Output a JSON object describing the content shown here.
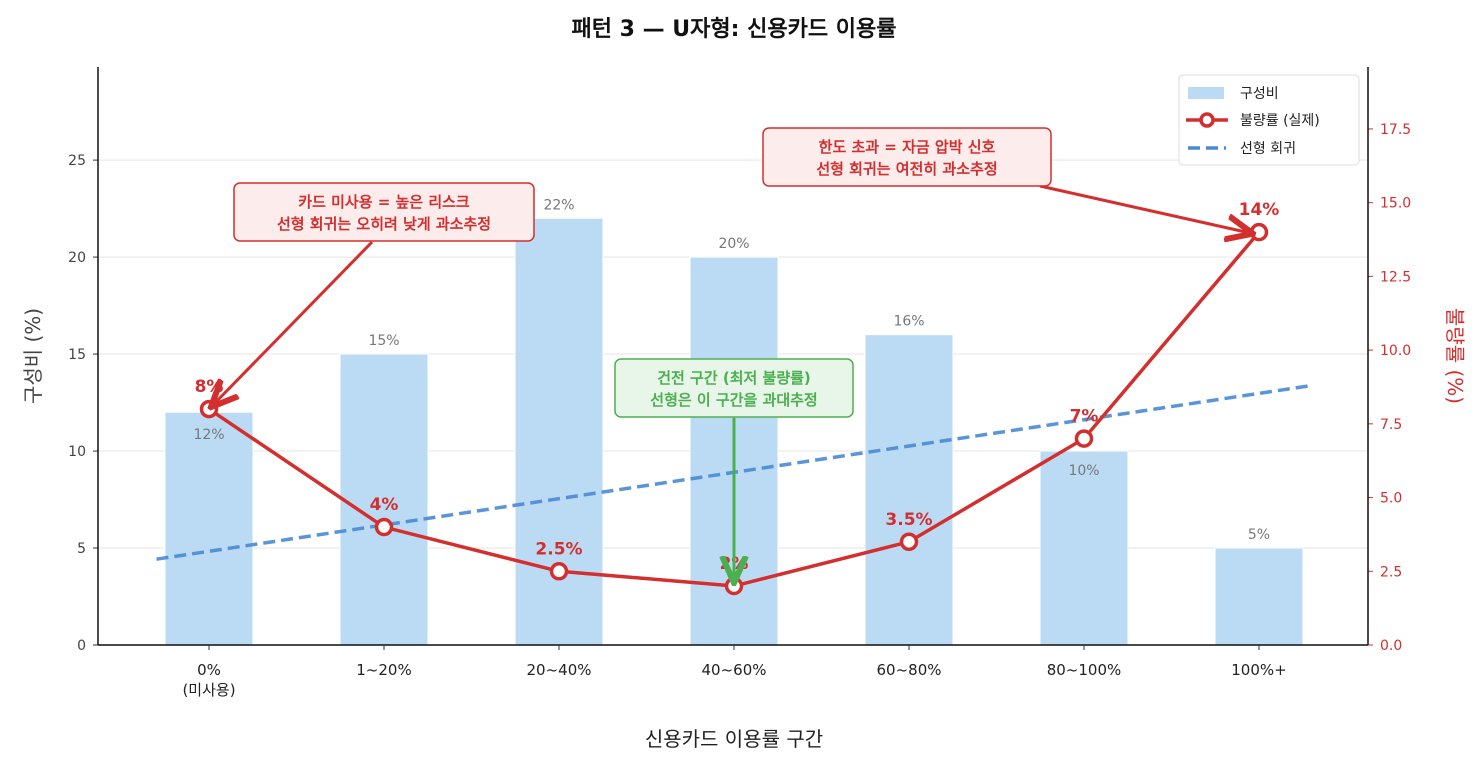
{
  "chart_data": {
    "type": "bar+line",
    "title": "패턴 3 — U자형: 신용카드 이용률",
    "xlabel": "신용카드 이용률 구간",
    "ylabel_left": "구성비 (%)",
    "ylabel_right": "불량률 (%)",
    "categories": [
      "0%\n(미사용)",
      "1~20%",
      "20~40%",
      "40~60%",
      "60~80%",
      "80~100%",
      "100%+"
    ],
    "series": [
      {
        "name": "구성비",
        "type": "bar",
        "axis": "left",
        "values": [
          12,
          15,
          22,
          20,
          16,
          10,
          5
        ],
        "labels": [
          "12%",
          "15%",
          "22%",
          "20%",
          "16%",
          "10%",
          "5%"
        ],
        "color": "#bbdbf4"
      },
      {
        "name": "불량률 (실제)",
        "type": "line",
        "axis": "right",
        "values": [
          8,
          4,
          2.5,
          2,
          3.5,
          7,
          14
        ],
        "labels": [
          "8%",
          "4%",
          "2.5%",
          "2%",
          "3.5%",
          "7%",
          "14%"
        ],
        "color": "#d32f2f"
      },
      {
        "name": "선형 회귀",
        "type": "dashed-line",
        "axis": "right",
        "x": [
          -0.3,
          6.3
        ],
        "values": [
          2.91,
          8.8
        ],
        "color": "#4a8ad4"
      }
    ],
    "ylim_left": [
      0,
      29.8
    ],
    "ylim_right": [
      0,
      19.6
    ],
    "yticks_left": [
      "0",
      "5",
      "10",
      "15",
      "20",
      "25"
    ],
    "yticks_right": [
      "0.0",
      "2.5",
      "5.0",
      "7.5",
      "10.0",
      "12.5",
      "15.0",
      "17.5"
    ],
    "grid": "horizontal",
    "legend": "top-right",
    "annotations": [
      {
        "lines": [
          "카드 미사용 = 높은 리스크",
          "선형 회귀는 오히려 낮게 과소추정"
        ],
        "target_category": 0,
        "color": "#d32f2f"
      },
      {
        "lines": [
          "한도 초과 = 자금 압박 신호",
          "선형 회귀는 여전히 과소추정"
        ],
        "target_category": 6,
        "color": "#d32f2f"
      },
      {
        "lines": [
          "건전 구간 (최저 불량률)",
          "선형은 이 구간을 과대추정"
        ],
        "target_category": 3,
        "color": "#4caf50"
      }
    ]
  }
}
